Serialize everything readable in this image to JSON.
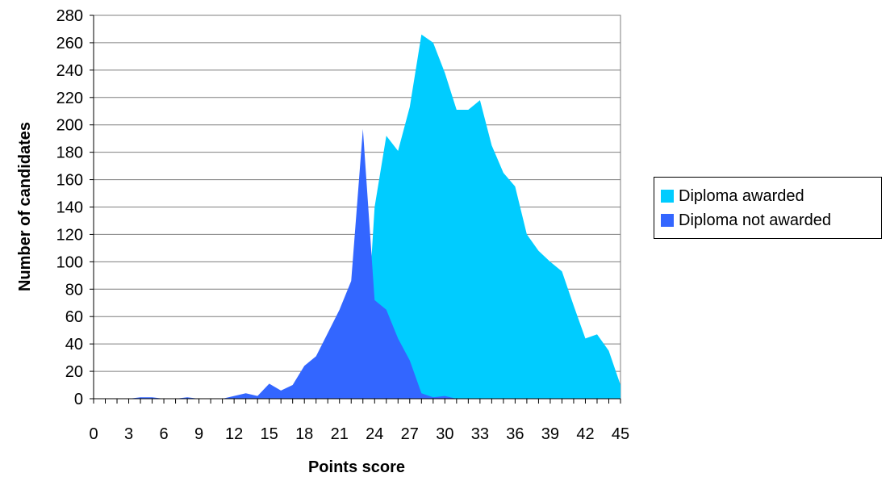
{
  "chart_data": {
    "type": "area",
    "title": "",
    "xlabel": "Points score",
    "ylabel": "Number of candidates",
    "xlim": [
      0,
      45
    ],
    "ylim": [
      0,
      280
    ],
    "x_ticks": [
      0,
      3,
      6,
      9,
      12,
      15,
      18,
      21,
      24,
      27,
      30,
      33,
      36,
      39,
      42,
      45
    ],
    "y_ticks": [
      0,
      20,
      40,
      60,
      80,
      100,
      120,
      140,
      160,
      180,
      200,
      220,
      240,
      260,
      280
    ],
    "grid": "horizontal",
    "legend_position": "right",
    "x": [
      0,
      1,
      2,
      3,
      4,
      5,
      6,
      7,
      8,
      9,
      10,
      11,
      12,
      13,
      14,
      15,
      16,
      17,
      18,
      19,
      20,
      21,
      22,
      23,
      24,
      25,
      26,
      27,
      28,
      29,
      30,
      31,
      32,
      33,
      34,
      35,
      36,
      37,
      38,
      39,
      40,
      41,
      42,
      43,
      44,
      45
    ],
    "series": [
      {
        "name": "Diploma awarded",
        "color": "#00ccff",
        "values": [
          0,
          0,
          0,
          0,
          0,
          0,
          0,
          0,
          0,
          0,
          0,
          0,
          0,
          0,
          0,
          0,
          0,
          0,
          0,
          0,
          0,
          0,
          0,
          0,
          140,
          192,
          181,
          213,
          266,
          260,
          238,
          211,
          211,
          218,
          185,
          165,
          155,
          120,
          108,
          100,
          93,
          68,
          44,
          47,
          35,
          10
        ]
      },
      {
        "name": "Diploma not awarded",
        "color": "#3366ff",
        "values": [
          0,
          0,
          0,
          0,
          1,
          1,
          0,
          0,
          1,
          0,
          0,
          0,
          2,
          4,
          2,
          11,
          6,
          10,
          24,
          31,
          48,
          65,
          86,
          197,
          72,
          65,
          44,
          28,
          4,
          1,
          2,
          0,
          0,
          0,
          0,
          0,
          0,
          0,
          0,
          0,
          0,
          0,
          0,
          0,
          0,
          0
        ]
      }
    ]
  }
}
